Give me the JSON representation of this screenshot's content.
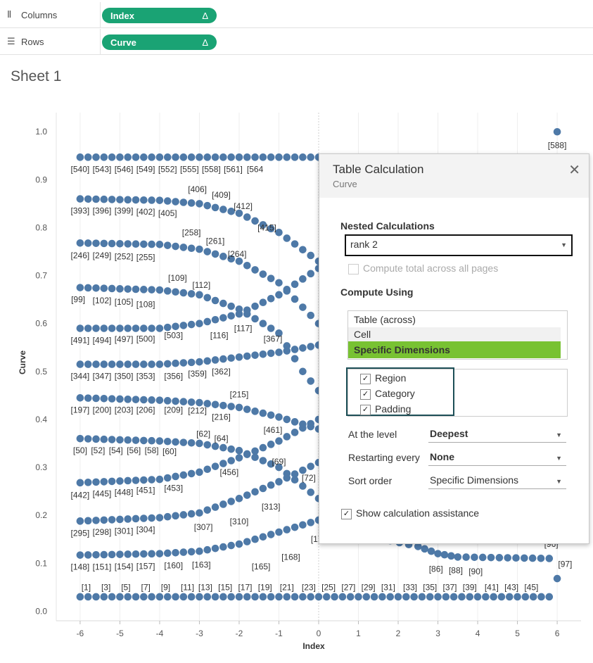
{
  "shelves": {
    "columns": {
      "label": "Columns",
      "icon": "columns-icon",
      "pill": "Index",
      "delta": "Δ"
    },
    "rows": {
      "label": "Rows",
      "icon": "rows-icon",
      "pill": "Curve",
      "delta": "Δ"
    }
  },
  "sheet_title": "Sheet 1",
  "colors": {
    "pill": "#1aa374",
    "marks": "#4e79a7",
    "highlight": "#78c232"
  },
  "chart_data": {
    "type": "scatter",
    "xlabel": "Index",
    "ylabel": "Curve",
    "xlim": [
      -6.6,
      6.6
    ],
    "ylim": [
      -0.02,
      1.04
    ],
    "x_ticks": [
      -6,
      -5,
      -4,
      -3,
      -2,
      -1,
      0,
      1,
      2,
      3,
      4,
      5,
      6
    ],
    "y_ticks": [
      0.0,
      0.1,
      0.2,
      0.3,
      0.4,
      0.5,
      0.6,
      0.7,
      0.8,
      0.9,
      1.0
    ],
    "y_tick_labels": [
      "0.0",
      "0.1",
      "0.2",
      "0.3",
      "0.4",
      "0.5",
      "0.6",
      "0.7",
      "0.8",
      "0.9",
      "1.0"
    ],
    "grid": "vertical",
    "point_step": 0.2,
    "series": [
      {
        "points": [
          [
            -6,
            0.03
          ],
          [
            5.8,
            0.03
          ]
        ]
      },
      {
        "points": [
          [
            -6,
            0.117
          ],
          [
            -4,
            0.12
          ],
          [
            -3,
            0.125
          ],
          [
            -2,
            0.14
          ],
          [
            -1,
            0.165
          ],
          [
            0,
            0.19
          ]
        ]
      },
      {
        "points": [
          [
            -6,
            0.188
          ],
          [
            -4,
            0.195
          ],
          [
            -3,
            0.205
          ],
          [
            -2,
            0.235
          ],
          [
            -1,
            0.27
          ],
          [
            0,
            0.31
          ]
        ]
      },
      {
        "points": [
          [
            -6,
            0.268
          ],
          [
            -4,
            0.275
          ],
          [
            -3,
            0.29
          ],
          [
            -2,
            0.32
          ],
          [
            -1,
            0.355
          ],
          [
            0,
            0.4
          ]
        ]
      },
      {
        "points": [
          [
            -6,
            0.36
          ],
          [
            -4,
            0.355
          ],
          [
            -3,
            0.35
          ],
          [
            -2,
            0.335
          ],
          [
            -1,
            0.3
          ],
          [
            0,
            0.235
          ]
        ]
      },
      {
        "points": [
          [
            -6,
            0.445
          ],
          [
            -4,
            0.44
          ],
          [
            -3,
            0.435
          ],
          [
            -2,
            0.425
          ],
          [
            -1,
            0.405
          ],
          [
            0,
            0.38
          ]
        ]
      },
      {
        "points": [
          [
            -6,
            0.515
          ],
          [
            -4,
            0.515
          ],
          [
            -3,
            0.52
          ],
          [
            -2,
            0.53
          ],
          [
            -1,
            0.54
          ],
          [
            0,
            0.555
          ]
        ]
      },
      {
        "points": [
          [
            -6,
            0.59
          ],
          [
            -4,
            0.59
          ],
          [
            -3,
            0.6
          ],
          [
            -2,
            0.62
          ],
          [
            -1,
            0.66
          ],
          [
            0,
            0.715
          ]
        ]
      },
      {
        "points": [
          [
            -6,
            0.675
          ],
          [
            -4,
            0.67
          ],
          [
            -3,
            0.66
          ],
          [
            -2,
            0.63
          ],
          [
            -1,
            0.58
          ],
          [
            -0.4,
            0.5
          ],
          [
            0,
            0.46
          ]
        ]
      },
      {
        "points": [
          [
            -6,
            0.768
          ],
          [
            -4,
            0.765
          ],
          [
            -3,
            0.755
          ],
          [
            -2,
            0.73
          ],
          [
            -1,
            0.685
          ],
          [
            0,
            0.6
          ]
        ]
      },
      {
        "points": [
          [
            -6,
            0.86
          ],
          [
            -4,
            0.857
          ],
          [
            -3,
            0.85
          ],
          [
            -2,
            0.83
          ],
          [
            -1,
            0.79
          ],
          [
            0,
            0.73
          ]
        ]
      },
      {
        "points": [
          [
            -6,
            0.947
          ],
          [
            5.8,
            0.947
          ]
        ]
      },
      {
        "points": [
          [
            1.8,
            0.147
          ],
          [
            2.5,
            0.135
          ],
          [
            3,
            0.12
          ],
          [
            3.5,
            0.113
          ],
          [
            5.8,
            0.11
          ]
        ]
      },
      {
        "points": [
          [
            6,
            0.147
          ]
        ]
      },
      {
        "points": [
          [
            6,
            0.068
          ]
        ]
      },
      {
        "points": [
          [
            6,
            1.0
          ]
        ]
      }
    ],
    "labels": [
      {
        "text": "[588]",
        "x": 6,
        "y": 0.972
      },
      {
        "text": "[540]",
        "x": -6,
        "y": 0.922
      },
      {
        "text": "[543]",
        "x": -5.45,
        "y": 0.922
      },
      {
        "text": "[546]",
        "x": -4.9,
        "y": 0.922
      },
      {
        "text": "[549]",
        "x": -4.35,
        "y": 0.922
      },
      {
        "text": "[552]",
        "x": -3.8,
        "y": 0.922
      },
      {
        "text": "[555]",
        "x": -3.25,
        "y": 0.922
      },
      {
        "text": "[558]",
        "x": -2.7,
        "y": 0.922
      },
      {
        "text": "[561]",
        "x": -2.15,
        "y": 0.922
      },
      {
        "text": "[564",
        "x": -1.6,
        "y": 0.922
      },
      {
        "text": "[393]",
        "x": -6,
        "y": 0.835
      },
      {
        "text": "[396]",
        "x": -5.45,
        "y": 0.835
      },
      {
        "text": "[399]",
        "x": -4.9,
        "y": 0.835
      },
      {
        "text": "[402]",
        "x": -4.35,
        "y": 0.833
      },
      {
        "text": "[405]",
        "x": -3.8,
        "y": 0.83
      },
      {
        "text": "[406]",
        "x": -3.05,
        "y": 0.88
      },
      {
        "text": "[409]",
        "x": -2.45,
        "y": 0.868
      },
      {
        "text": "[412]",
        "x": -1.9,
        "y": 0.845
      },
      {
        "text": "[415]",
        "x": -1.3,
        "y": 0.8
      },
      {
        "text": "[246]",
        "x": -6,
        "y": 0.742
      },
      {
        "text": "[249]",
        "x": -5.45,
        "y": 0.742
      },
      {
        "text": "[252]",
        "x": -4.9,
        "y": 0.74
      },
      {
        "text": "[255]",
        "x": -4.35,
        "y": 0.738
      },
      {
        "text": "[258]",
        "x": -3.2,
        "y": 0.79
      },
      {
        "text": "[261]",
        "x": -2.6,
        "y": 0.772
      },
      {
        "text": "[264]",
        "x": -2.05,
        "y": 0.745
      },
      {
        "text": "[99]",
        "x": -6.05,
        "y": 0.65
      },
      {
        "text": "[102]",
        "x": -5.45,
        "y": 0.648
      },
      {
        "text": "[105]",
        "x": -4.9,
        "y": 0.645
      },
      {
        "text": "[108]",
        "x": -4.35,
        "y": 0.64
      },
      {
        "text": "[109]",
        "x": -3.55,
        "y": 0.695
      },
      {
        "text": "[112]",
        "x": -2.95,
        "y": 0.68
      },
      {
        "text": "[117]",
        "x": -1.9,
        "y": 0.59
      },
      {
        "text": "[116]",
        "x": -2.5,
        "y": 0.575
      },
      {
        "text": "[491]",
        "x": -6,
        "y": 0.565
      },
      {
        "text": "[494]",
        "x": -5.45,
        "y": 0.565
      },
      {
        "text": "[497]",
        "x": -4.9,
        "y": 0.567
      },
      {
        "text": "[500]",
        "x": -4.35,
        "y": 0.568
      },
      {
        "text": "[503]",
        "x": -3.65,
        "y": 0.575
      },
      {
        "text": "[367]",
        "x": -1.15,
        "y": 0.568
      },
      {
        "text": "[344]",
        "x": -6,
        "y": 0.49
      },
      {
        "text": "[347]",
        "x": -5.45,
        "y": 0.49
      },
      {
        "text": "[350]",
        "x": -4.9,
        "y": 0.49
      },
      {
        "text": "[353]",
        "x": -4.35,
        "y": 0.49
      },
      {
        "text": "[356]",
        "x": -3.65,
        "y": 0.49
      },
      {
        "text": "[359]",
        "x": -3.05,
        "y": 0.495
      },
      {
        "text": "[362]",
        "x": -2.45,
        "y": 0.5
      },
      {
        "text": "[215]",
        "x": -2.0,
        "y": 0.452
      },
      {
        "text": "[197]",
        "x": -6,
        "y": 0.42
      },
      {
        "text": "[200]",
        "x": -5.45,
        "y": 0.42
      },
      {
        "text": "[203]",
        "x": -4.9,
        "y": 0.42
      },
      {
        "text": "[206]",
        "x": -4.35,
        "y": 0.42
      },
      {
        "text": "[209]",
        "x": -3.65,
        "y": 0.42
      },
      {
        "text": "[212]",
        "x": -3.05,
        "y": 0.418
      },
      {
        "text": "[216]",
        "x": -2.45,
        "y": 0.405
      },
      {
        "text": "[461]",
        "x": -1.15,
        "y": 0.378
      },
      {
        "text": "[62]",
        "x": -2.9,
        "y": 0.37
      },
      {
        "text": "[64]",
        "x": -2.45,
        "y": 0.36
      },
      {
        "text": "[50]",
        "x": -6,
        "y": 0.335
      },
      {
        "text": "[52]",
        "x": -5.55,
        "y": 0.335
      },
      {
        "text": "[54]",
        "x": -5.1,
        "y": 0.335
      },
      {
        "text": "[56]",
        "x": -4.65,
        "y": 0.335
      },
      {
        "text": "[58]",
        "x": -4.2,
        "y": 0.335
      },
      {
        "text": "[60]",
        "x": -3.75,
        "y": 0.333
      },
      {
        "text": "[69]",
        "x": -1.0,
        "y": 0.312
      },
      {
        "text": "[72]",
        "x": -0.25,
        "y": 0.278
      },
      {
        "text": "[456]",
        "x": -2.25,
        "y": 0.29
      },
      {
        "text": "[442]",
        "x": -6,
        "y": 0.242
      },
      {
        "text": "[445]",
        "x": -5.45,
        "y": 0.245
      },
      {
        "text": "[448]",
        "x": -4.9,
        "y": 0.248
      },
      {
        "text": "[451]",
        "x": -4.35,
        "y": 0.252
      },
      {
        "text": "[453]",
        "x": -3.65,
        "y": 0.257
      },
      {
        "text": "[313]",
        "x": -1.2,
        "y": 0.218
      },
      {
        "text": "[310]",
        "x": -2.0,
        "y": 0.187
      },
      {
        "text": "[295]",
        "x": -6,
        "y": 0.163
      },
      {
        "text": "[298]",
        "x": -5.45,
        "y": 0.165
      },
      {
        "text": "[301]",
        "x": -4.9,
        "y": 0.167
      },
      {
        "text": "[304]",
        "x": -4.35,
        "y": 0.17
      },
      {
        "text": "[307]",
        "x": -2.9,
        "y": 0.175
      },
      {
        "text": "[17",
        "x": -0.05,
        "y": 0.15
      },
      {
        "text": "[168]",
        "x": -0.7,
        "y": 0.113
      },
      {
        "text": "[165]",
        "x": -1.45,
        "y": 0.093
      },
      {
        "text": "[148]",
        "x": -6,
        "y": 0.092
      },
      {
        "text": "[151]",
        "x": -5.45,
        "y": 0.092
      },
      {
        "text": "[154]",
        "x": -4.9,
        "y": 0.093
      },
      {
        "text": "[157]",
        "x": -4.35,
        "y": 0.094
      },
      {
        "text": "[160]",
        "x": -3.65,
        "y": 0.095
      },
      {
        "text": "[163]",
        "x": -2.95,
        "y": 0.097
      },
      {
        "text": "[86]",
        "x": 2.95,
        "y": 0.088
      },
      {
        "text": "[88]",
        "x": 3.45,
        "y": 0.085
      },
      {
        "text": "[90]",
        "x": 3.95,
        "y": 0.083
      },
      {
        "text": "[97]",
        "x": 6.2,
        "y": 0.098
      },
      {
        "text": "[96]",
        "x": 5.85,
        "y": 0.14
      },
      {
        "text": "[1]",
        "x": -5.85,
        "y": 0.05
      },
      {
        "text": "[3]",
        "x": -5.35,
        "y": 0.05
      },
      {
        "text": "[5]",
        "x": -4.85,
        "y": 0.05
      },
      {
        "text": "[7]",
        "x": -4.35,
        "y": 0.05
      },
      {
        "text": "[9]",
        "x": -3.85,
        "y": 0.05
      },
      {
        "text": "[11]",
        "x": -3.3,
        "y": 0.05
      },
      {
        "text": "[13]",
        "x": -2.85,
        "y": 0.05
      },
      {
        "text": "[15]",
        "x": -2.35,
        "y": 0.05
      },
      {
        "text": "[17]",
        "x": -1.85,
        "y": 0.05
      },
      {
        "text": "[19]",
        "x": -1.35,
        "y": 0.05
      },
      {
        "text": "[21]",
        "x": -0.8,
        "y": 0.05
      },
      {
        "text": "[23]",
        "x": -0.25,
        "y": 0.05
      },
      {
        "text": "[25]",
        "x": 0.25,
        "y": 0.05
      },
      {
        "text": "[27]",
        "x": 0.75,
        "y": 0.05
      },
      {
        "text": "[29]",
        "x": 1.25,
        "y": 0.05
      },
      {
        "text": "[31]",
        "x": 1.75,
        "y": 0.05
      },
      {
        "text": "[33]",
        "x": 2.3,
        "y": 0.05
      },
      {
        "text": "[35]",
        "x": 2.8,
        "y": 0.05
      },
      {
        "text": "[37]",
        "x": 3.3,
        "y": 0.05
      },
      {
        "text": "[39]",
        "x": 3.8,
        "y": 0.05
      },
      {
        "text": "[41]",
        "x": 4.35,
        "y": 0.05
      },
      {
        "text": "[43]",
        "x": 4.85,
        "y": 0.05
      },
      {
        "text": "[45]",
        "x": 5.35,
        "y": 0.05
      }
    ]
  },
  "dialog": {
    "title": "Table Calculation",
    "subtitle": "Curve",
    "close_glyph": "✕",
    "nested_label": "Nested Calculations",
    "nested_value": "rank 2",
    "compute_total_label": "Compute total across all pages",
    "compute_using_label": "Compute Using",
    "compute_using_options": [
      "Table (across)",
      "Cell",
      "Specific Dimensions"
    ],
    "compute_using_selected": "Specific Dimensions",
    "dimensions": [
      {
        "label": "Region",
        "checked": true
      },
      {
        "label": "Category",
        "checked": true
      },
      {
        "label": "Padding",
        "checked": true
      }
    ],
    "at_level_label": "At the level",
    "at_level_value": "Deepest",
    "restarting_label": "Restarting every",
    "restarting_value": "None",
    "sort_label": "Sort order",
    "sort_value": "Specific Dimensions",
    "assist_label": "Show calculation assistance",
    "assist_checked": true
  }
}
